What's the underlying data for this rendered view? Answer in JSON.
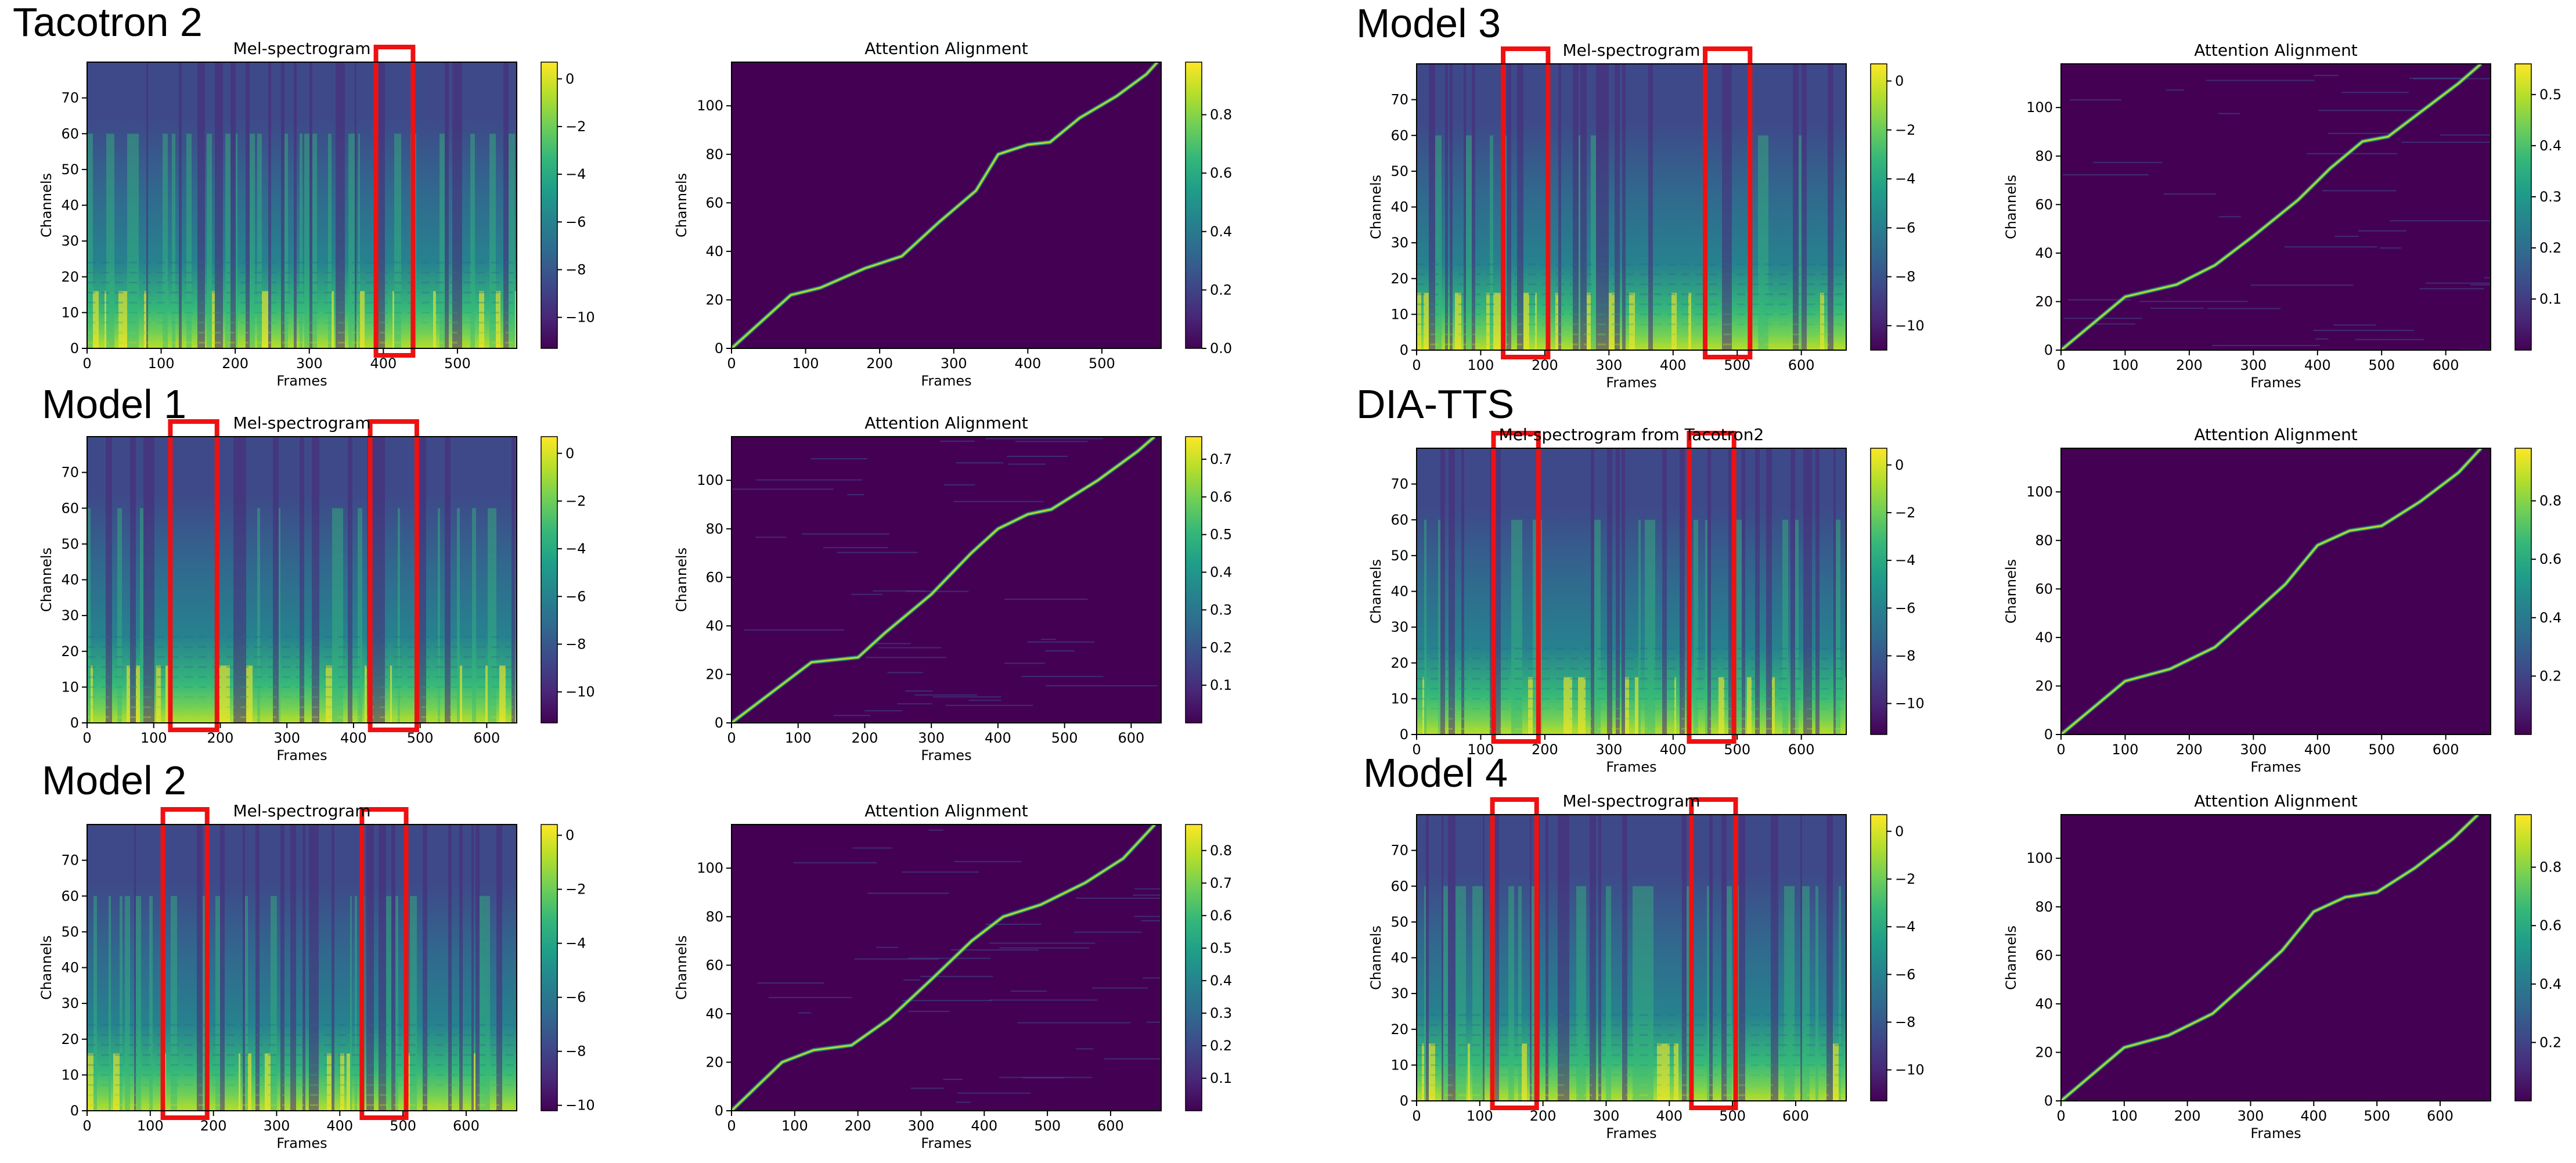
{
  "figure": {
    "colors": {
      "viridis": [
        "#440154",
        "#482878",
        "#3e4989",
        "#31688e",
        "#26828e",
        "#1f9e89",
        "#35b779",
        "#6ece58",
        "#b5de2b",
        "#fde725"
      ],
      "highlight_box": "#ee1111",
      "frame": "#000000"
    }
  },
  "panels": [
    {
      "label": "Tacotron 2",
      "mel": {
        "title": "Mel-spectrogram",
        "xlabel": "Frames",
        "ylabel": "Channels",
        "xticks": [
          0,
          100,
          200,
          300,
          400,
          500
        ],
        "xlim": [
          0,
          580
        ],
        "yticks": [
          0,
          10,
          20,
          30,
          40,
          50,
          60,
          70
        ],
        "ylim": [
          0,
          80
        ],
        "cbar_ticks": [
          "0",
          "−2",
          "−4",
          "−6",
          "−8",
          "−10"
        ],
        "cbar_range": [
          -11.3,
          0.7
        ],
        "boxes": [
          [
            390,
            440
          ]
        ]
      },
      "att": {
        "title": "Attention Alignment",
        "xlabel": "Frames",
        "ylabel": "Channels",
        "xticks": [
          0,
          100,
          200,
          300,
          400,
          500
        ],
        "xlim": [
          0,
          580
        ],
        "yticks": [
          0,
          20,
          40,
          60,
          80,
          100
        ],
        "ylim": [
          0,
          118
        ],
        "cbar_ticks": [
          "0.0",
          "0.2",
          "0.4",
          "0.6",
          "0.8"
        ],
        "cbar_range": [
          0,
          0.98
        ]
      }
    },
    {
      "label": "Model 1",
      "mel": {
        "title": "Mel-spectrogram",
        "xlabel": "Frames",
        "ylabel": "Channels",
        "xticks": [
          0,
          100,
          200,
          300,
          400,
          500,
          600
        ],
        "xlim": [
          0,
          645
        ],
        "yticks": [
          0,
          10,
          20,
          30,
          40,
          50,
          60,
          70
        ],
        "ylim": [
          0,
          80
        ],
        "cbar_ticks": [
          "0",
          "−2",
          "−4",
          "−6",
          "−8",
          "−10"
        ],
        "cbar_range": [
          -11.3,
          0.7
        ],
        "boxes": [
          [
            125,
            195
          ],
          [
            425,
            495
          ]
        ]
      },
      "att": {
        "title": "Attention Alignment",
        "xlabel": "Frames",
        "ylabel": "Channels",
        "xticks": [
          0,
          100,
          200,
          300,
          400,
          500,
          600
        ],
        "xlim": [
          0,
          645
        ],
        "yticks": [
          0,
          20,
          40,
          60,
          80,
          100
        ],
        "ylim": [
          0,
          118
        ],
        "cbar_ticks": [
          "0.1",
          "0.2",
          "0.3",
          "0.4",
          "0.5",
          "0.6",
          "0.7"
        ],
        "cbar_range": [
          0,
          0.76
        ]
      }
    },
    {
      "label": "Model 2",
      "mel": {
        "title": "Mel-spectrogram",
        "xlabel": "Frames",
        "ylabel": "Channels",
        "xticks": [
          0,
          100,
          200,
          300,
          400,
          500,
          600
        ],
        "xlim": [
          0,
          680
        ],
        "yticks": [
          0,
          10,
          20,
          30,
          40,
          50,
          60,
          70
        ],
        "ylim": [
          0,
          80
        ],
        "cbar_ticks": [
          "0",
          "−2",
          "−4",
          "−6",
          "−8",
          "−10"
        ],
        "cbar_range": [
          -10.2,
          0.4
        ],
        "boxes": [
          [
            120,
            190
          ],
          [
            435,
            505
          ]
        ]
      },
      "att": {
        "title": "Attention Alignment",
        "xlabel": "Frames",
        "ylabel": "Channels",
        "xticks": [
          0,
          100,
          200,
          300,
          400,
          500,
          600
        ],
        "xlim": [
          0,
          680
        ],
        "yticks": [
          0,
          20,
          40,
          60,
          80,
          100
        ],
        "ylim": [
          0,
          118
        ],
        "cbar_ticks": [
          "0.1",
          "0.2",
          "0.3",
          "0.4",
          "0.5",
          "0.6",
          "0.7",
          "0.8"
        ],
        "cbar_range": [
          0,
          0.88
        ]
      }
    },
    {
      "label": "Model 3",
      "mel": {
        "title": "Mel-spectrogram",
        "xlabel": "Frames",
        "ylabel": "Channels",
        "xticks": [
          0,
          100,
          200,
          300,
          400,
          500,
          600
        ],
        "xlim": [
          0,
          670
        ],
        "yticks": [
          0,
          10,
          20,
          30,
          40,
          50,
          60,
          70
        ],
        "ylim": [
          0,
          80
        ],
        "cbar_ticks": [
          "0",
          "−2",
          "−4",
          "−6",
          "−8",
          "−10"
        ],
        "cbar_range": [
          -11.0,
          0.7
        ],
        "boxes": [
          [
            135,
            205
          ],
          [
            450,
            520
          ]
        ]
      },
      "att": {
        "title": "Attention Alignment",
        "xlabel": "Frames",
        "ylabel": "Channels",
        "xticks": [
          0,
          100,
          200,
          300,
          400,
          500,
          600
        ],
        "xlim": [
          0,
          670
        ],
        "yticks": [
          0,
          20,
          40,
          60,
          80,
          100
        ],
        "ylim": [
          0,
          118
        ],
        "cbar_ticks": [
          "0.1",
          "0.2",
          "0.3",
          "0.4",
          "0.5"
        ],
        "cbar_range": [
          0,
          0.56
        ]
      }
    },
    {
      "label": "DIA-TTS",
      "mel": {
        "title": "Mel-spectrogram from Tacotron2",
        "xlabel": "Frames",
        "ylabel": "Channels",
        "xticks": [
          0,
          100,
          200,
          300,
          400,
          500,
          600
        ],
        "xlim": [
          0,
          670
        ],
        "yticks": [
          0,
          10,
          20,
          30,
          40,
          50,
          60,
          70
        ],
        "ylim": [
          0,
          80
        ],
        "cbar_ticks": [
          "0",
          "−2",
          "−4",
          "−6",
          "−8",
          "−10"
        ],
        "cbar_range": [
          -11.3,
          0.7
        ],
        "boxes": [
          [
            120,
            190
          ],
          [
            425,
            495
          ]
        ]
      },
      "att": {
        "title": "Attention Alignment",
        "xlabel": "Frames",
        "ylabel": "Channels",
        "xticks": [
          0,
          100,
          200,
          300,
          400,
          500,
          600
        ],
        "xlim": [
          0,
          670
        ],
        "yticks": [
          0,
          20,
          40,
          60,
          80,
          100
        ],
        "ylim": [
          0,
          118
        ],
        "cbar_ticks": [
          "0.2",
          "0.4",
          "0.6",
          "0.8"
        ],
        "cbar_range": [
          0,
          0.98
        ]
      }
    },
    {
      "label": "Model 4",
      "mel": {
        "title": "Mel-spectrogram",
        "xlabel": "Frames",
        "ylabel": "Channels",
        "xticks": [
          0,
          100,
          200,
          300,
          400,
          500,
          600
        ],
        "xlim": [
          0,
          680
        ],
        "yticks": [
          0,
          10,
          20,
          30,
          40,
          50,
          60,
          70
        ],
        "ylim": [
          0,
          80
        ],
        "cbar_ticks": [
          "0",
          "−2",
          "−4",
          "−6",
          "−8",
          "−10"
        ],
        "cbar_range": [
          -11.3,
          0.7
        ],
        "boxes": [
          [
            120,
            190
          ],
          [
            435,
            505
          ]
        ]
      },
      "att": {
        "title": "Attention Alignment",
        "xlabel": "Frames",
        "ylabel": "Channels",
        "xticks": [
          0,
          100,
          200,
          300,
          400,
          500,
          600
        ],
        "xlim": [
          0,
          680
        ],
        "yticks": [
          0,
          20,
          40,
          60,
          80,
          100
        ],
        "ylim": [
          0,
          118
        ],
        "cbar_ticks": [
          "0.2",
          "0.4",
          "0.6",
          "0.8"
        ],
        "cbar_range": [
          0,
          0.98
        ]
      }
    }
  ],
  "chart_data": [
    {
      "type": "heatmap",
      "title": "Mel-spectrogram",
      "panel": "Tacotron 2",
      "xlabel": "Frames",
      "ylabel": "Channels",
      "xlim": [
        0,
        580
      ],
      "ylim": [
        0,
        80
      ],
      "colorbar": [
        -11.3,
        0.7
      ]
    },
    {
      "type": "heatmap",
      "title": "Attention Alignment",
      "panel": "Tacotron 2",
      "xlabel": "Frames",
      "ylabel": "Channels",
      "xlim": [
        0,
        580
      ],
      "ylim": [
        0,
        118
      ],
      "colorbar": [
        0,
        0.98
      ],
      "alignment_path": {
        "x": [
          0,
          80,
          120,
          180,
          230,
          280,
          330,
          360,
          400,
          430,
          470,
          520,
          560,
          575
        ],
        "y": [
          0,
          22,
          25,
          33,
          38,
          52,
          65,
          80,
          84,
          85,
          95,
          104,
          113,
          118
        ]
      }
    },
    {
      "type": "heatmap",
      "title": "Mel-spectrogram",
      "panel": "Model 1",
      "xlabel": "Frames",
      "ylabel": "Channels",
      "xlim": [
        0,
        645
      ],
      "ylim": [
        0,
        80
      ],
      "colorbar": [
        -11.3,
        0.7
      ]
    },
    {
      "type": "heatmap",
      "title": "Attention Alignment",
      "panel": "Model 1",
      "xlabel": "Frames",
      "ylabel": "Channels",
      "xlim": [
        0,
        645
      ],
      "ylim": [
        0,
        118
      ],
      "colorbar": [
        0,
        0.76
      ],
      "alignment_path": {
        "x": [
          0,
          120,
          190,
          230,
          300,
          360,
          400,
          445,
          480,
          550,
          610,
          635
        ],
        "y": [
          0,
          25,
          27,
          37,
          53,
          70,
          80,
          86,
          88,
          100,
          112,
          118
        ]
      }
    },
    {
      "type": "heatmap",
      "title": "Mel-spectrogram",
      "panel": "Model 2",
      "xlabel": "Frames",
      "ylabel": "Channels",
      "xlim": [
        0,
        680
      ],
      "ylim": [
        0,
        80
      ],
      "colorbar": [
        -10.2,
        0.4
      ]
    },
    {
      "type": "heatmap",
      "title": "Attention Alignment",
      "panel": "Model 2",
      "xlabel": "Frames",
      "ylabel": "Channels",
      "xlim": [
        0,
        680
      ],
      "ylim": [
        0,
        118
      ],
      "colorbar": [
        0,
        0.88
      ],
      "alignment_path": {
        "x": [
          0,
          80,
          130,
          190,
          250,
          320,
          380,
          430,
          490,
          560,
          620,
          670
        ],
        "y": [
          0,
          20,
          25,
          27,
          38,
          55,
          70,
          80,
          85,
          94,
          104,
          118
        ]
      }
    },
    {
      "type": "heatmap",
      "title": "Mel-spectrogram",
      "panel": "Model 3",
      "xlabel": "Frames",
      "ylabel": "Channels",
      "xlim": [
        0,
        670
      ],
      "ylim": [
        0,
        80
      ],
      "colorbar": [
        -11.0,
        0.7
      ]
    },
    {
      "type": "heatmap",
      "title": "Attention Alignment",
      "panel": "Model 3",
      "xlabel": "Frames",
      "ylabel": "Channels",
      "xlim": [
        0,
        670
      ],
      "ylim": [
        0,
        118
      ],
      "colorbar": [
        0,
        0.56
      ],
      "alignment_path": {
        "x": [
          0,
          100,
          180,
          240,
          300,
          370,
          420,
          470,
          510,
          560,
          620,
          655
        ],
        "y": [
          0,
          22,
          27,
          35,
          47,
          62,
          75,
          86,
          88,
          98,
          110,
          118
        ]
      }
    },
    {
      "type": "heatmap",
      "title": "Mel-spectrogram from Tacotron2",
      "panel": "DIA-TTS",
      "xlabel": "Frames",
      "ylabel": "Channels",
      "xlim": [
        0,
        670
      ],
      "ylim": [
        0,
        80
      ],
      "colorbar": [
        -11.3,
        0.7
      ]
    },
    {
      "type": "heatmap",
      "title": "Attention Alignment",
      "panel": "DIA-TTS",
      "xlabel": "Frames",
      "ylabel": "Channels",
      "xlim": [
        0,
        670
      ],
      "ylim": [
        0,
        118
      ],
      "colorbar": [
        0,
        0.98
      ],
      "alignment_path": {
        "x": [
          0,
          100,
          170,
          240,
          300,
          350,
          400,
          450,
          500,
          560,
          620,
          655
        ],
        "y": [
          0,
          22,
          27,
          36,
          50,
          62,
          78,
          84,
          86,
          96,
          108,
          118
        ]
      }
    },
    {
      "type": "heatmap",
      "title": "Mel-spectrogram",
      "panel": "Model 4",
      "xlabel": "Frames",
      "ylabel": "Channels",
      "xlim": [
        0,
        680
      ],
      "ylim": [
        0,
        80
      ],
      "colorbar": [
        -11.3,
        0.7
      ]
    },
    {
      "type": "heatmap",
      "title": "Attention Alignment",
      "panel": "Model 4",
      "xlabel": "Frames",
      "ylabel": "Channels",
      "xlim": [
        0,
        680
      ],
      "ylim": [
        0,
        118
      ],
      "colorbar": [
        0,
        0.98
      ],
      "alignment_path": {
        "x": [
          0,
          100,
          170,
          240,
          300,
          350,
          400,
          450,
          500,
          560,
          620,
          660
        ],
        "y": [
          0,
          22,
          27,
          36,
          50,
          62,
          78,
          84,
          86,
          96,
          108,
          118
        ]
      }
    }
  ]
}
